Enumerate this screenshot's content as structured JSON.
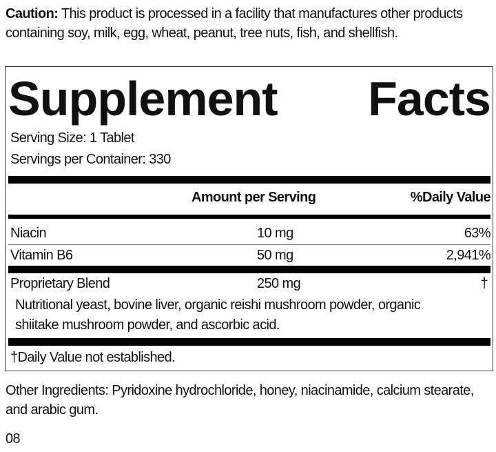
{
  "caution": {
    "label": "Caution:",
    "text": " This product is processed in a facility that manufactures other products containing soy, milk, egg, wheat, peanut, tree nuts, fish, and shellfish."
  },
  "facts": {
    "title_left": "Supplement",
    "title_right": "Facts",
    "serving_size": "Serving Size: 1 Tablet",
    "servings_per_container": "Servings per Container: 330",
    "header_amount": "Amount per Serving",
    "header_dv": "%Daily Value",
    "rows": [
      {
        "name": "Niacin",
        "amount": "10 mg",
        "dv": "63%"
      },
      {
        "name": "Vitamin B6",
        "amount": "50 mg",
        "dv": "2,941%"
      },
      {
        "name": "Proprietary Blend",
        "amount": "250 mg",
        "dv": "†"
      }
    ],
    "blend_line1": "Nutritional yeast, bovine liver, organic reishi mushroom powder, organic",
    "blend_line2": "shiitake mushroom powder, and ascorbic acid.",
    "footnote": "†Daily Value not established."
  },
  "other_ingredients": "Other Ingredients: Pyridoxine hydrochloride, honey, niacinamide, calcium stearate, and arabic gum.",
  "code": "08"
}
